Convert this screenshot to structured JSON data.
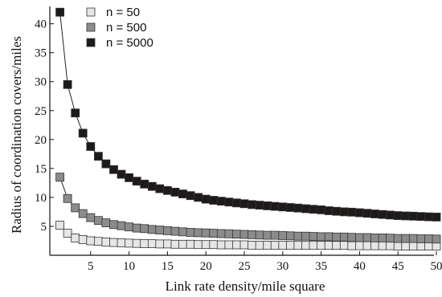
{
  "chart_data": {
    "type": "line",
    "title": "",
    "xlabel": "Link rate density/mile square",
    "ylabel": "Radius of coordination covers/miles",
    "xlim": [
      0,
      50
    ],
    "ylim": [
      0,
      43
    ],
    "x_ticks": [
      5,
      10,
      15,
      20,
      25,
      30,
      35,
      40,
      45,
      50
    ],
    "y_ticks": [
      5,
      10,
      15,
      20,
      25,
      30,
      35,
      40
    ],
    "x_tick_labels": [
      "5",
      "10",
      "15",
      "20",
      "25",
      "30",
      "35",
      "40",
      "45",
      "50"
    ],
    "y_tick_labels": [
      "5",
      "10",
      "15",
      "20",
      "25",
      "30",
      "35",
      "40"
    ],
    "grid": false,
    "legend_position": "top-left",
    "x": [
      1,
      2,
      3,
      4,
      5,
      6,
      7,
      8,
      9,
      10,
      11,
      12,
      13,
      14,
      15,
      16,
      17,
      18,
      19,
      20,
      21,
      22,
      23,
      24,
      25,
      26,
      27,
      28,
      29,
      30,
      31,
      32,
      33,
      34,
      35,
      36,
      37,
      38,
      39,
      40,
      41,
      42,
      43,
      44,
      45,
      46,
      47,
      48,
      49,
      50
    ],
    "series": [
      {
        "name": "n = 50",
        "color": "#e6e6e6",
        "values": [
          5.2,
          3.8,
          3.0,
          2.7,
          2.5,
          2.4,
          2.3,
          2.2,
          2.15,
          2.1,
          2.05,
          2.0,
          2.0,
          1.95,
          1.95,
          1.9,
          1.9,
          1.9,
          1.85,
          1.85,
          1.85,
          1.8,
          1.8,
          1.8,
          1.8,
          1.75,
          1.75,
          1.75,
          1.75,
          1.75,
          1.7,
          1.7,
          1.7,
          1.7,
          1.7,
          1.7,
          1.7,
          1.7,
          1.65,
          1.65,
          1.65,
          1.65,
          1.65,
          1.65,
          1.6,
          1.6,
          1.6,
          1.6,
          1.6,
          1.6
        ]
      },
      {
        "name": "n = 500",
        "color": "#8c8c8c",
        "values": [
          13.5,
          9.8,
          8.2,
          7.2,
          6.5,
          6.0,
          5.6,
          5.3,
          5.1,
          4.9,
          4.7,
          4.6,
          4.45,
          4.35,
          4.25,
          4.15,
          4.05,
          3.95,
          3.9,
          3.85,
          3.8,
          3.75,
          3.7,
          3.65,
          3.6,
          3.55,
          3.5,
          3.45,
          3.45,
          3.4,
          3.35,
          3.3,
          3.3,
          3.25,
          3.2,
          3.2,
          3.15,
          3.15,
          3.1,
          3.05,
          3.05,
          3.0,
          3.0,
          2.95,
          2.9,
          2.9,
          2.9,
          2.85,
          2.85,
          2.8
        ]
      },
      {
        "name": "n = 5000",
        "color": "#1e1a1a",
        "values": [
          42.0,
          29.5,
          24.6,
          21.1,
          18.8,
          17.1,
          15.8,
          14.8,
          14.0,
          13.4,
          12.8,
          12.3,
          11.9,
          11.5,
          11.2,
          10.9,
          10.6,
          10.3,
          10.0,
          9.7,
          9.5,
          9.35,
          9.2,
          9.05,
          8.9,
          8.75,
          8.65,
          8.55,
          8.45,
          8.35,
          8.25,
          8.15,
          8.05,
          7.95,
          7.85,
          7.7,
          7.6,
          7.5,
          7.45,
          7.35,
          7.25,
          7.15,
          7.05,
          6.95,
          6.85,
          6.8,
          6.75,
          6.7,
          6.65,
          6.6
        ]
      }
    ]
  }
}
